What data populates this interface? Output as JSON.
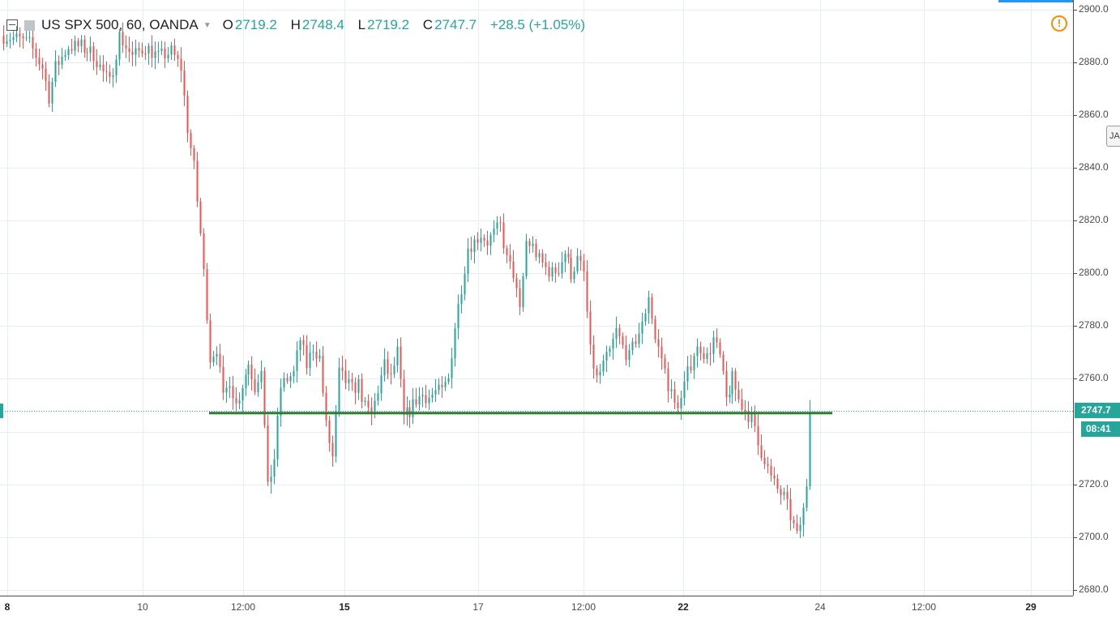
{
  "symbol": {
    "title": "US SPX 500, 60, OANDA",
    "open_label": "O",
    "open": "2719.2",
    "high_label": "H",
    "high": "2748.4",
    "low_label": "L",
    "low": "2719.2",
    "close_label": "C",
    "close": "2747.7",
    "change": "+28.5 (+1.05%)"
  },
  "price_scale": {
    "ticks": [
      "2900.0",
      "2880.0",
      "2860.0",
      "2840.0",
      "2820.0",
      "2800.0",
      "2780.0",
      "2760.0",
      "2720.0",
      "2700.0",
      "2680.0"
    ],
    "last_price": "2747.7",
    "countdown": "08:41",
    "side_tab": "JA"
  },
  "time_scale": {
    "labels": [
      "8",
      "10",
      "12:00",
      "15",
      "17",
      "12:00",
      "22",
      "24",
      "12:00",
      "29"
    ],
    "bold": [
      true,
      false,
      false,
      true,
      false,
      false,
      true,
      false,
      false,
      true
    ]
  },
  "icons": {
    "collapse": "collapse-icon",
    "symbol_square": "symbol-square-icon",
    "dropdown": "chevron-down-icon",
    "alert": "exclamation-circle-icon"
  },
  "colors": {
    "up": "#26a69a",
    "down": "#ef5350",
    "support_line": "#2e7d32",
    "grid": "#e6eef5",
    "accent": "#2196f3",
    "alert": "#ff8c00"
  },
  "chart_data": {
    "type": "candlestick",
    "title": "US SPX 500, 60, OANDA",
    "xlabel": "",
    "ylabel": "",
    "ylim": [
      2677.8,
      2903.6
    ],
    "grid": true,
    "last_price": 2747.7,
    "support_level": 2747,
    "price_path": [
      {
        "bar": 0,
        "price": 2890
      },
      {
        "bar": 4,
        "price": 2889
      },
      {
        "bar": 8,
        "price": 2887
      },
      {
        "bar": 12,
        "price": 2878
      },
      {
        "bar": 14,
        "price": 2867
      },
      {
        "bar": 16,
        "price": 2878
      },
      {
        "bar": 20,
        "price": 2886
      },
      {
        "bar": 24,
        "price": 2886
      },
      {
        "bar": 28,
        "price": 2883
      },
      {
        "bar": 31,
        "price": 2876
      },
      {
        "bar": 33,
        "price": 2872
      },
      {
        "bar": 36,
        "price": 2890
      },
      {
        "bar": 40,
        "price": 2882
      },
      {
        "bar": 44,
        "price": 2886
      },
      {
        "bar": 48,
        "price": 2882
      },
      {
        "bar": 52,
        "price": 2884
      },
      {
        "bar": 55,
        "price": 2878
      },
      {
        "bar": 57,
        "price": 2855
      },
      {
        "bar": 59,
        "price": 2840
      },
      {
        "bar": 61,
        "price": 2815
      },
      {
        "bar": 63,
        "price": 2785
      },
      {
        "bar": 64,
        "price": 2768
      },
      {
        "bar": 66,
        "price": 2772
      },
      {
        "bar": 68,
        "price": 2752
      },
      {
        "bar": 70,
        "price": 2760
      },
      {
        "bar": 72,
        "price": 2750
      },
      {
        "bar": 74,
        "price": 2758
      },
      {
        "bar": 76,
        "price": 2766
      },
      {
        "bar": 78,
        "price": 2757
      },
      {
        "bar": 80,
        "price": 2765
      },
      {
        "bar": 82,
        "price": 2718
      },
      {
        "bar": 84,
        "price": 2730
      },
      {
        "bar": 86,
        "price": 2757
      },
      {
        "bar": 88,
        "price": 2760
      },
      {
        "bar": 90,
        "price": 2762
      },
      {
        "bar": 92,
        "price": 2775
      },
      {
        "bar": 94,
        "price": 2765
      },
      {
        "bar": 96,
        "price": 2772
      },
      {
        "bar": 98,
        "price": 2768
      },
      {
        "bar": 100,
        "price": 2742
      },
      {
        "bar": 102,
        "price": 2730
      },
      {
        "bar": 104,
        "price": 2762
      },
      {
        "bar": 106,
        "price": 2759
      },
      {
        "bar": 108,
        "price": 2756
      },
      {
        "bar": 110,
        "price": 2758
      },
      {
        "bar": 112,
        "price": 2749
      },
      {
        "bar": 114,
        "price": 2746
      },
      {
        "bar": 116,
        "price": 2756
      },
      {
        "bar": 118,
        "price": 2765
      },
      {
        "bar": 120,
        "price": 2760
      },
      {
        "bar": 122,
        "price": 2770
      },
      {
        "bar": 124,
        "price": 2745
      },
      {
        "bar": 126,
        "price": 2748
      },
      {
        "bar": 128,
        "price": 2752
      },
      {
        "bar": 130,
        "price": 2754
      },
      {
        "bar": 132,
        "price": 2753
      },
      {
        "bar": 134,
        "price": 2755
      },
      {
        "bar": 136,
        "price": 2755
      },
      {
        "bar": 138,
        "price": 2760
      },
      {
        "bar": 140,
        "price": 2780
      },
      {
        "bar": 142,
        "price": 2795
      },
      {
        "bar": 144,
        "price": 2810
      },
      {
        "bar": 146,
        "price": 2812
      },
      {
        "bar": 148,
        "price": 2815
      },
      {
        "bar": 150,
        "price": 2812
      },
      {
        "bar": 152,
        "price": 2815
      },
      {
        "bar": 154,
        "price": 2818
      },
      {
        "bar": 156,
        "price": 2805
      },
      {
        "bar": 158,
        "price": 2800
      },
      {
        "bar": 160,
        "price": 2785
      },
      {
        "bar": 162,
        "price": 2812
      },
      {
        "bar": 164,
        "price": 2810
      },
      {
        "bar": 166,
        "price": 2805
      },
      {
        "bar": 168,
        "price": 2802
      },
      {
        "bar": 170,
        "price": 2800
      },
      {
        "bar": 172,
        "price": 2802
      },
      {
        "bar": 174,
        "price": 2808
      },
      {
        "bar": 176,
        "price": 2800
      },
      {
        "bar": 178,
        "price": 2805
      },
      {
        "bar": 180,
        "price": 2800
      },
      {
        "bar": 182,
        "price": 2770
      },
      {
        "bar": 184,
        "price": 2760
      },
      {
        "bar": 186,
        "price": 2765
      },
      {
        "bar": 188,
        "price": 2770
      },
      {
        "bar": 190,
        "price": 2778
      },
      {
        "bar": 192,
        "price": 2772
      },
      {
        "bar": 194,
        "price": 2768
      },
      {
        "bar": 196,
        "price": 2775
      },
      {
        "bar": 198,
        "price": 2780
      },
      {
        "bar": 200,
        "price": 2792
      },
      {
        "bar": 202,
        "price": 2775
      },
      {
        "bar": 204,
        "price": 2768
      },
      {
        "bar": 206,
        "price": 2758
      },
      {
        "bar": 208,
        "price": 2750
      },
      {
        "bar": 210,
        "price": 2752
      },
      {
        "bar": 212,
        "price": 2762
      },
      {
        "bar": 214,
        "price": 2770
      },
      {
        "bar": 216,
        "price": 2772
      },
      {
        "bar": 218,
        "price": 2768
      },
      {
        "bar": 220,
        "price": 2775
      },
      {
        "bar": 222,
        "price": 2768
      },
      {
        "bar": 224,
        "price": 2752
      },
      {
        "bar": 226,
        "price": 2760
      },
      {
        "bar": 228,
        "price": 2752
      },
      {
        "bar": 230,
        "price": 2748
      },
      {
        "bar": 232,
        "price": 2745
      },
      {
        "bar": 234,
        "price": 2735
      },
      {
        "bar": 236,
        "price": 2730
      },
      {
        "bar": 238,
        "price": 2722
      },
      {
        "bar": 240,
        "price": 2718
      },
      {
        "bar": 242,
        "price": 2715
      },
      {
        "bar": 244,
        "price": 2708
      },
      {
        "bar": 246,
        "price": 2700
      },
      {
        "bar": 248,
        "price": 2710
      },
      {
        "bar": 249,
        "price": 2720
      },
      {
        "bar": 250,
        "price": 2747.7
      }
    ]
  }
}
